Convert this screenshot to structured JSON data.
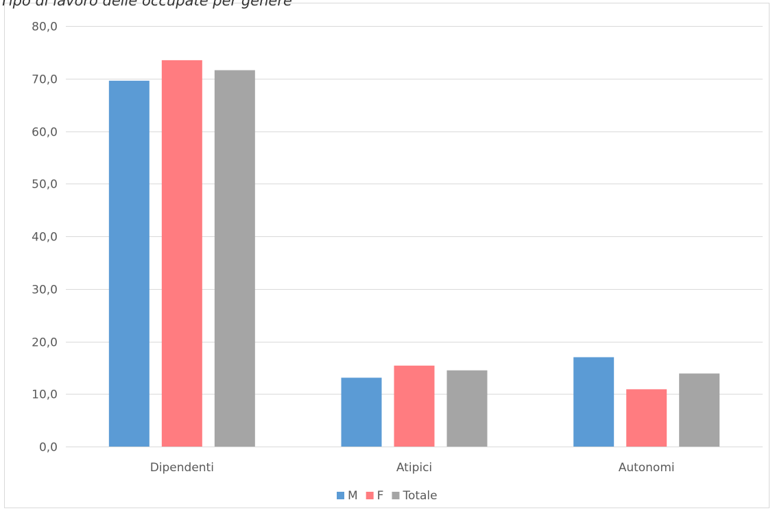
{
  "chart_data": {
    "type": "bar",
    "title": "Tipo di lavoro delle occupate per genere",
    "xlabel": "",
    "ylabel": "",
    "categories": [
      "Dipendenti",
      "Atipici",
      "Autonomi"
    ],
    "series": [
      {
        "name": "M",
        "values": [
          69.6,
          13.1,
          17.0
        ],
        "color": "#5b9bd5"
      },
      {
        "name": "F",
        "values": [
          73.5,
          15.4,
          10.9
        ],
        "color": "#ff7c80"
      },
      {
        "name": "Totale",
        "values": [
          71.6,
          14.5,
          13.9
        ],
        "color": "#a5a5a5"
      }
    ],
    "ylim": [
      0,
      80
    ],
    "yticks": [
      "0,0",
      "10,0",
      "20,0",
      "30,0",
      "40,0",
      "50,0",
      "60,0",
      "70,0",
      "80,0"
    ],
    "grid": true,
    "gridColor": "#d9d9d9",
    "legend_position": "bottom"
  }
}
